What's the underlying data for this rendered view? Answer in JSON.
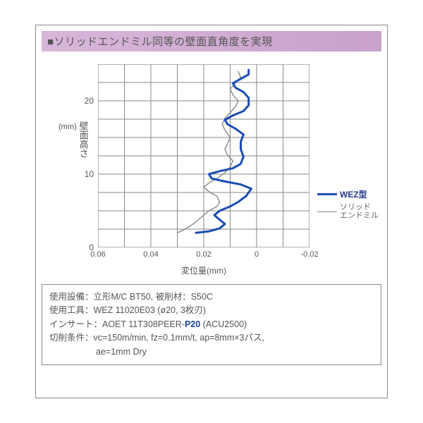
{
  "heading": "ソリッドエンドミル同等の壁面直角度を実現",
  "chart": {
    "type": "line",
    "ylabel": "壁面高さ",
    "ylabel_unit": "(mm)",
    "xlabel": "変位量(mm)",
    "x_domain_left": 0.06,
    "x_domain_right": -0.02,
    "y_domain_bottom": 0,
    "y_domain_top": 25,
    "xticks": [
      0.06,
      0.04,
      0.02,
      0,
      -0.02
    ],
    "yticks": [
      0,
      10,
      20
    ],
    "xgrid_every": 0.01,
    "ygrid_every": 2.5,
    "grid_color": "#888888",
    "background": "#ffffff",
    "series": [
      {
        "name": "ソリッドエンドミル",
        "label_lines": [
          "ソリッド",
          "エンドミル"
        ],
        "color": "#888888",
        "width": 1.4,
        "points": [
          [
            0.03,
            2.0
          ],
          [
            0.027,
            2.5
          ],
          [
            0.024,
            3.2
          ],
          [
            0.022,
            3.8
          ],
          [
            0.02,
            4.4
          ],
          [
            0.018,
            5.0
          ],
          [
            0.015,
            5.6
          ],
          [
            0.014,
            6.2
          ],
          [
            0.015,
            7.0
          ],
          [
            0.018,
            7.6
          ],
          [
            0.02,
            8.2
          ],
          [
            0.018,
            8.8
          ],
          [
            0.015,
            9.4
          ],
          [
            0.012,
            10.2
          ],
          [
            0.01,
            11.0
          ],
          [
            0.009,
            11.8
          ],
          [
            0.011,
            12.6
          ],
          [
            0.012,
            13.4
          ],
          [
            0.011,
            14.2
          ],
          [
            0.01,
            15.0
          ],
          [
            0.012,
            16.0
          ],
          [
            0.013,
            16.8
          ],
          [
            0.012,
            17.6
          ],
          [
            0.01,
            18.4
          ],
          [
            0.008,
            19.2
          ],
          [
            0.007,
            20.0
          ],
          [
            0.009,
            20.8
          ],
          [
            0.01,
            21.6
          ],
          [
            0.008,
            22.4
          ],
          [
            0.006,
            23.2
          ],
          [
            0.007,
            24.0
          ]
        ]
      },
      {
        "name": "WEZ型",
        "label_lines": [
          "WEZ型"
        ],
        "color": "#1b4db3",
        "width": 3,
        "points": [
          [
            0.023,
            2.0
          ],
          [
            0.018,
            2.2
          ],
          [
            0.014,
            2.6
          ],
          [
            0.012,
            3.2
          ],
          [
            0.014,
            3.8
          ],
          [
            0.016,
            4.4
          ],
          [
            0.014,
            5.0
          ],
          [
            0.01,
            5.6
          ],
          [
            0.007,
            6.2
          ],
          [
            0.004,
            7.0
          ],
          [
            0.002,
            8.0
          ],
          [
            0.006,
            8.6
          ],
          [
            0.012,
            9.0
          ],
          [
            0.017,
            9.4
          ],
          [
            0.018,
            10.0
          ],
          [
            0.014,
            10.4
          ],
          [
            0.009,
            10.8
          ],
          [
            0.006,
            11.4
          ],
          [
            0.005,
            12.4
          ],
          [
            0.006,
            13.4
          ],
          [
            0.006,
            14.4
          ],
          [
            0.005,
            15.4
          ],
          [
            0.008,
            16.2
          ],
          [
            0.011,
            16.8
          ],
          [
            0.012,
            17.4
          ],
          [
            0.009,
            18.0
          ],
          [
            0.005,
            18.6
          ],
          [
            0.003,
            19.4
          ],
          [
            0.003,
            20.4
          ],
          [
            0.005,
            21.2
          ],
          [
            0.008,
            21.8
          ],
          [
            0.009,
            22.4
          ],
          [
            0.006,
            23.0
          ],
          [
            0.003,
            23.6
          ],
          [
            0.003,
            24.2
          ]
        ]
      }
    ],
    "legend": {
      "wez": "WEZ型",
      "solid_l1": "ソリッド",
      "solid_l2": "エンドミル"
    }
  },
  "info": {
    "line1_a": "使用設備：立形M/C BT50, 被削材：S50C",
    "line2_a": "使用工具：WEZ 11020E03 (ø20, 3枚刃)",
    "line3_pre": "インサート：AOET 11T308PEER-",
    "line3_p20": "P20",
    "line3_post": " (ACU2500)",
    "line4": "切削条件：vc=150m/min, fz=0.1mm/t, ap=8mm×3パス,",
    "line5": "ae=1mm  Dry"
  }
}
